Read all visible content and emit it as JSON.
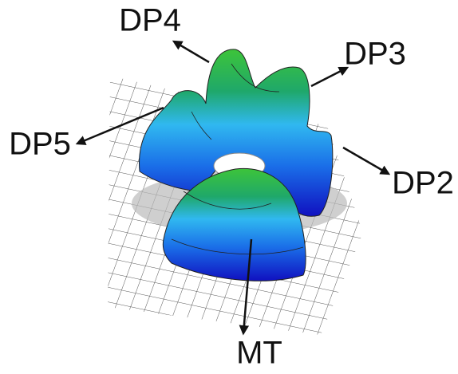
{
  "labels": [
    "DP4",
    "DP3",
    "DP5",
    "DP2",
    "MT"
  ]
}
